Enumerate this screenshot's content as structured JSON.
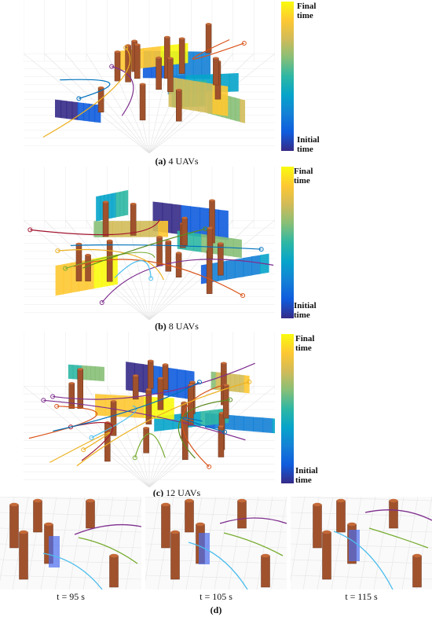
{
  "panels": [
    {
      "label": "(a)",
      "caption": "4 UAVs",
      "colorbar_top": "Final time",
      "colorbar_bottom": "Initial time"
    },
    {
      "label": "(b)",
      "caption": "8 UAVs",
      "colorbar_top": "Final time",
      "colorbar_bottom": "Initial time"
    },
    {
      "label": "(c)",
      "caption": "12 UAVs",
      "colorbar_top": "Final time",
      "colorbar_bottom": "Initial time"
    }
  ],
  "snapshots": [
    {
      "caption": "t = 95 s"
    },
    {
      "caption": "t = 105 s"
    },
    {
      "caption": "t = 115 s"
    }
  ],
  "panel_d_label": "(d)"
}
